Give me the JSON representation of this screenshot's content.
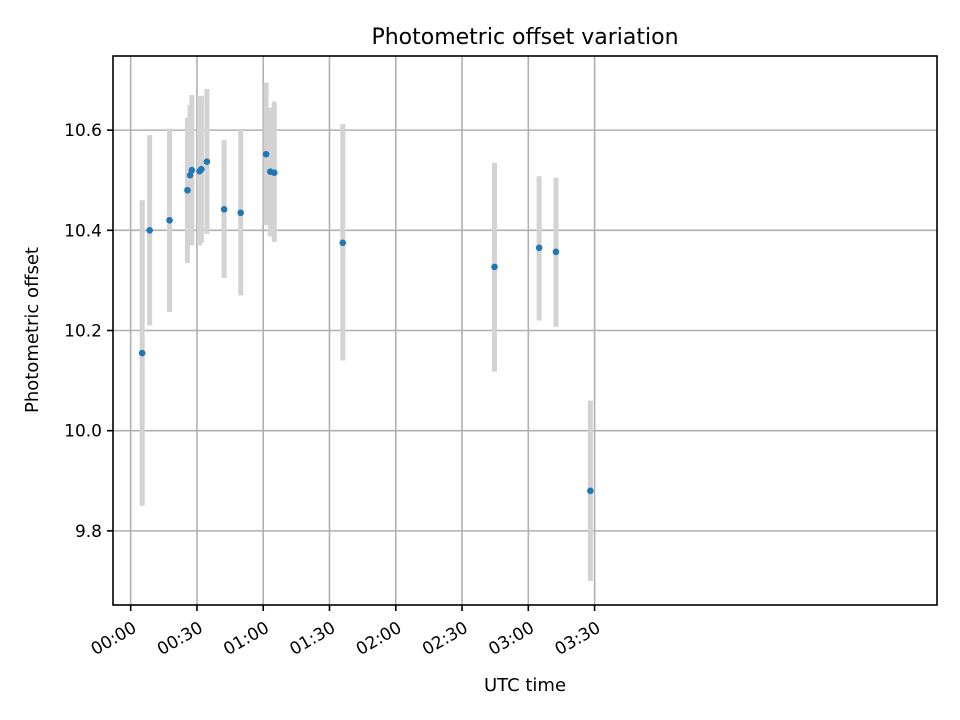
{
  "chart_data": {
    "type": "scatter",
    "title": "Photometric offset variation",
    "xlabel": "UTC time",
    "ylabel": "Photometric offset",
    "x_unit": "minutes after 00:00 UTC",
    "xlim": [
      -8,
      365
    ],
    "ylim": [
      9.652,
      10.748
    ],
    "x_ticks": [
      {
        "value": 0,
        "label": "00:00"
      },
      {
        "value": 30,
        "label": "00:30"
      },
      {
        "value": 60,
        "label": "01:00"
      },
      {
        "value": 90,
        "label": "01:30"
      },
      {
        "value": 120,
        "label": "02:00"
      },
      {
        "value": 150,
        "label": "02:30"
      },
      {
        "value": 180,
        "label": "03:00"
      },
      {
        "value": 210,
        "label": "03:30"
      }
    ],
    "y_ticks": [
      {
        "value": 9.8,
        "label": "9.8"
      },
      {
        "value": 10.0,
        "label": "10.0"
      },
      {
        "value": 10.2,
        "label": "10.2"
      },
      {
        "value": 10.4,
        "label": "10.4"
      },
      {
        "value": 10.6,
        "label": "10.6"
      }
    ],
    "grid": true,
    "colors": {
      "points": "#1f77b4",
      "error_bars": "#d3d3d3",
      "grid": "#b0b0b0"
    },
    "series": [
      {
        "points": [
          {
            "x": 5.2,
            "y": 10.155,
            "ylo": 9.85,
            "yhi": 10.46
          },
          {
            "x": 8.6,
            "y": 10.4,
            "ylo": 10.21,
            "yhi": 10.59
          },
          {
            "x": 17.6,
            "y": 10.42,
            "ylo": 10.237,
            "yhi": 10.603
          },
          {
            "x": 25.7,
            "y": 10.48,
            "ylo": 10.335,
            "yhi": 10.625
          },
          {
            "x": 26.9,
            "y": 10.51,
            "ylo": 10.37,
            "yhi": 10.65
          },
          {
            "x": 27.7,
            "y": 10.52,
            "ylo": 10.37,
            "yhi": 10.67
          },
          {
            "x": 31.2,
            "y": 10.518,
            "ylo": 10.37,
            "yhi": 10.668
          },
          {
            "x": 32.0,
            "y": 10.522,
            "ylo": 10.375,
            "yhi": 10.668
          },
          {
            "x": 34.5,
            "y": 10.537,
            "ylo": 10.393,
            "yhi": 10.682
          },
          {
            "x": 42.3,
            "y": 10.442,
            "ylo": 10.305,
            "yhi": 10.58
          },
          {
            "x": 49.8,
            "y": 10.435,
            "ylo": 10.27,
            "yhi": 10.6
          },
          {
            "x": 61.3,
            "y": 10.552,
            "ylo": 10.41,
            "yhi": 10.695
          },
          {
            "x": 63.2,
            "y": 10.517,
            "ylo": 10.388,
            "yhi": 10.645
          },
          {
            "x": 65.0,
            "y": 10.515,
            "ylo": 10.377,
            "yhi": 10.657
          },
          {
            "x": 96.0,
            "y": 10.375,
            "ylo": 10.14,
            "yhi": 10.612
          },
          {
            "x": 164.7,
            "y": 10.327,
            "ylo": 10.118,
            "yhi": 10.535
          },
          {
            "x": 184.9,
            "y": 10.365,
            "ylo": 10.22,
            "yhi": 10.508
          },
          {
            "x": 192.5,
            "y": 10.357,
            "ylo": 10.207,
            "yhi": 10.505
          },
          {
            "x": 208.1,
            "y": 9.88,
            "ylo": 9.7,
            "yhi": 10.06
          }
        ]
      }
    ]
  }
}
